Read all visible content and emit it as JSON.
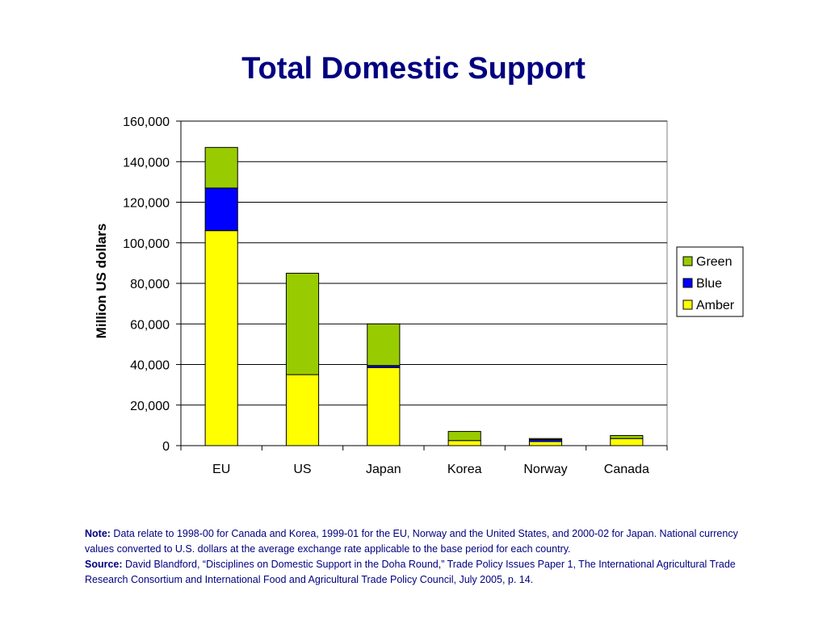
{
  "slide": {
    "title": "Total Domestic Support"
  },
  "chart_data": {
    "type": "bar",
    "stacked": true,
    "title": "Total Domestic Support",
    "xlabel": "",
    "ylabel": "Million US dollars",
    "ylim": [
      0,
      160000
    ],
    "yticks": [
      0,
      20000,
      40000,
      60000,
      80000,
      100000,
      120000,
      140000,
      160000
    ],
    "ytick_labels": [
      "0",
      "20,000",
      "40,000",
      "60,000",
      "80,000",
      "100,000",
      "120,000",
      "140,000",
      "160,000"
    ],
    "grid": "horizontal",
    "legend_position": "right",
    "categories": [
      "EU",
      "US",
      "Japan",
      "Korea",
      "Norway",
      "Canada"
    ],
    "series": [
      {
        "name": "Amber",
        "color": "#FFFF00",
        "values": [
          106000,
          35000,
          38500,
          2500,
          2000,
          3500
        ]
      },
      {
        "name": "Blue",
        "color": "#0000FF",
        "values": [
          21000,
          0,
          1000,
          0,
          1000,
          0
        ]
      },
      {
        "name": "Green",
        "color": "#99CC00",
        "values": [
          20000,
          50000,
          20500,
          4500,
          500,
          1500
        ]
      }
    ],
    "legend_order": [
      "Green",
      "Blue",
      "Amber"
    ]
  },
  "footnote": {
    "note_label": "Note:",
    "note_text": "Data relate to 1998-00 for Canada and Korea, 1999-01 for the EU, Norway and the United States, and 2000-02 for Japan. National currency values converted to U.S. dollars at the average exchange rate applicable to the base period for each country.",
    "source_label": "Source:",
    "source_text": "David Blandford, “Disciplines on Domestic Support in the Doha Round,” Trade Policy Issues Paper 1, The International Agricultural Trade Research Consortium and International Food and Agricultural Trade Policy Council, July 2005, p. 14."
  }
}
